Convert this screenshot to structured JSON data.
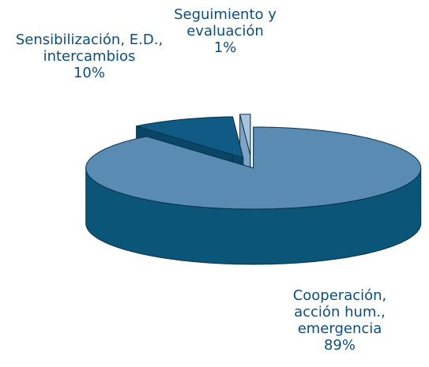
{
  "chart_data": {
    "type": "pie",
    "categories": [
      "Cooperación, acción hum., emergencia",
      "Sensibilización, E.D., intercambios",
      "Seguimiento y evaluación"
    ],
    "values": [
      89,
      10,
      1
    ],
    "value_labels": [
      "89%",
      "10%",
      "1%"
    ],
    "colors": [
      "#5a8cb3",
      "#0f5b85",
      "#a9c3dc"
    ],
    "side_colors": [
      "#0b5579",
      "#0a4566",
      "#7ea3c4"
    ]
  }
}
